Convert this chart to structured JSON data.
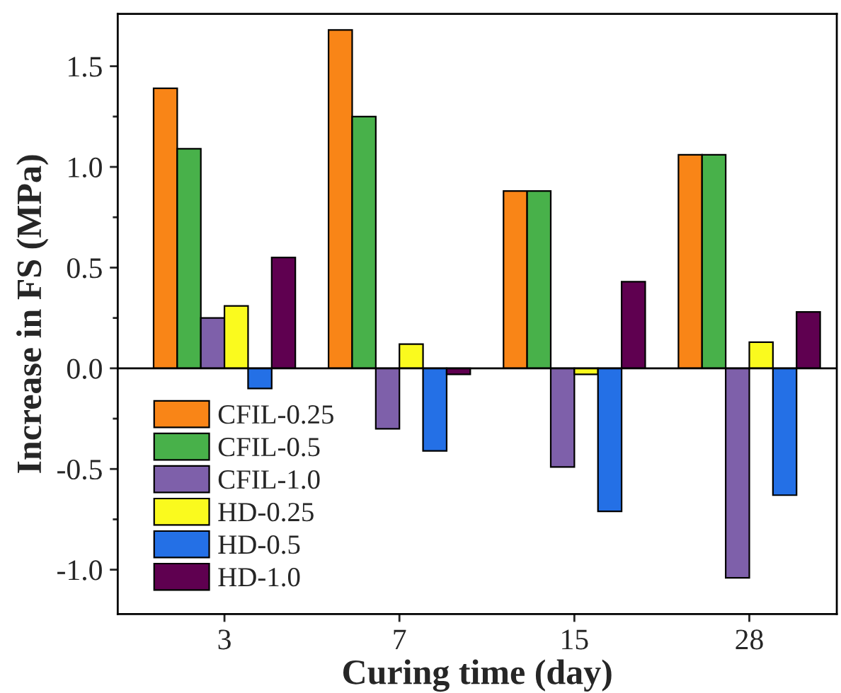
{
  "chart_data": {
    "type": "bar",
    "xlabel": "Curing time (day)",
    "ylabel": "Increase in FS (MPa)",
    "categories": [
      "3",
      "7",
      "15",
      "28"
    ],
    "series": [
      {
        "name": "CFIL-0.25",
        "color": "#f98517",
        "values": [
          1.39,
          1.68,
          0.88,
          1.06
        ]
      },
      {
        "name": "CFIL-0.5",
        "color": "#48b14a",
        "values": [
          1.09,
          1.25,
          0.88,
          1.06
        ]
      },
      {
        "name": "CFIL-1.0",
        "color": "#7e60aa",
        "values": [
          0.25,
          -0.3,
          -0.49,
          -1.04
        ]
      },
      {
        "name": "HD-0.25",
        "color": "#fafa1e",
        "values": [
          0.31,
          0.12,
          -0.03,
          0.13
        ]
      },
      {
        "name": "HD-0.5",
        "color": "#2470e6",
        "values": [
          -0.1,
          -0.41,
          -0.71,
          -0.63
        ]
      },
      {
        "name": "HD-1.0",
        "color": "#5f0050",
        "values": [
          0.55,
          -0.03,
          0.43,
          0.28
        ]
      }
    ],
    "ylim": [
      -1.22,
      1.76
    ],
    "yticks": [
      {
        "value": -1.0,
        "label": "-1.0"
      },
      {
        "value": -0.75,
        "label": null
      },
      {
        "value": -0.5,
        "label": "-0.5"
      },
      {
        "value": -0.25,
        "label": null
      },
      {
        "value": 0.0,
        "label": "0.0"
      },
      {
        "value": 0.25,
        "label": null
      },
      {
        "value": 0.5,
        "label": "0.5"
      },
      {
        "value": 0.75,
        "label": null
      },
      {
        "value": 1.0,
        "label": "1.0"
      },
      {
        "value": 1.25,
        "label": null
      },
      {
        "value": 1.5,
        "label": "1.5"
      }
    ],
    "ref_lines": [
      {
        "axis": "y",
        "value": 0,
        "color": "#000000"
      }
    ],
    "legend": "bottom left",
    "grid": false
  }
}
